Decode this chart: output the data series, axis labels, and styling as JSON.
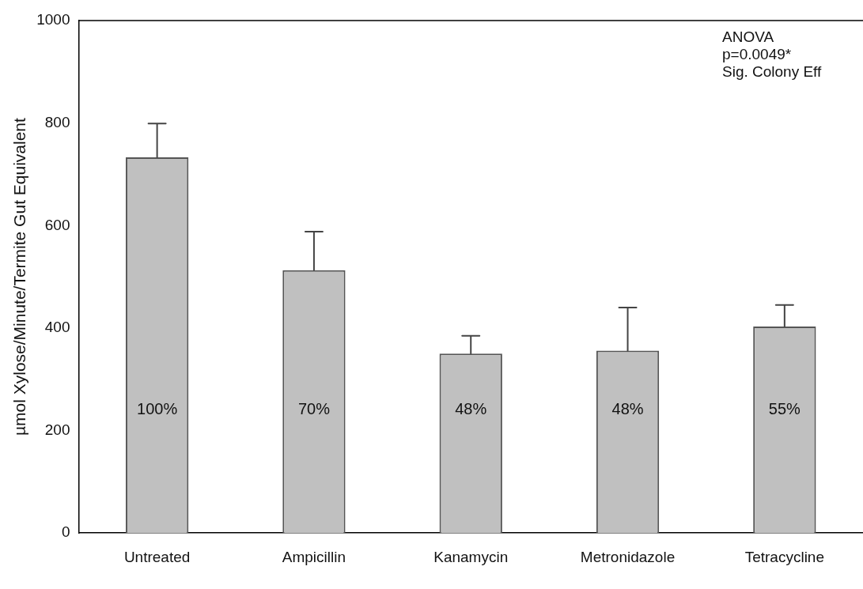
{
  "chart_data": {
    "type": "bar",
    "ylabel": "µmol Xylose/Minute/Termite Gut Equivalent",
    "categories": [
      "Untreated",
      "Ampicillin",
      "Kanamycin",
      "Metronidazole",
      "Tetracycline"
    ],
    "values": [
      733,
      513,
      350,
      356,
      403
    ],
    "errors": [
      [
        733,
        799
      ],
      [
        513,
        588
      ],
      [
        350,
        385
      ],
      [
        356,
        440
      ],
      [
        403,
        445
      ]
    ],
    "color": "#c0c0c0",
    "ylim": [
      0,
      1000
    ],
    "yticks": [
      0,
      200,
      400,
      600,
      800,
      1000
    ],
    "grid": false,
    "legend": false,
    "annotations": [
      "ANOVA",
      "p=0.0049*",
      "Sig. Colony Eff",
      "100%",
      "70%",
      "48%",
      "48%",
      "55%"
    ]
  }
}
